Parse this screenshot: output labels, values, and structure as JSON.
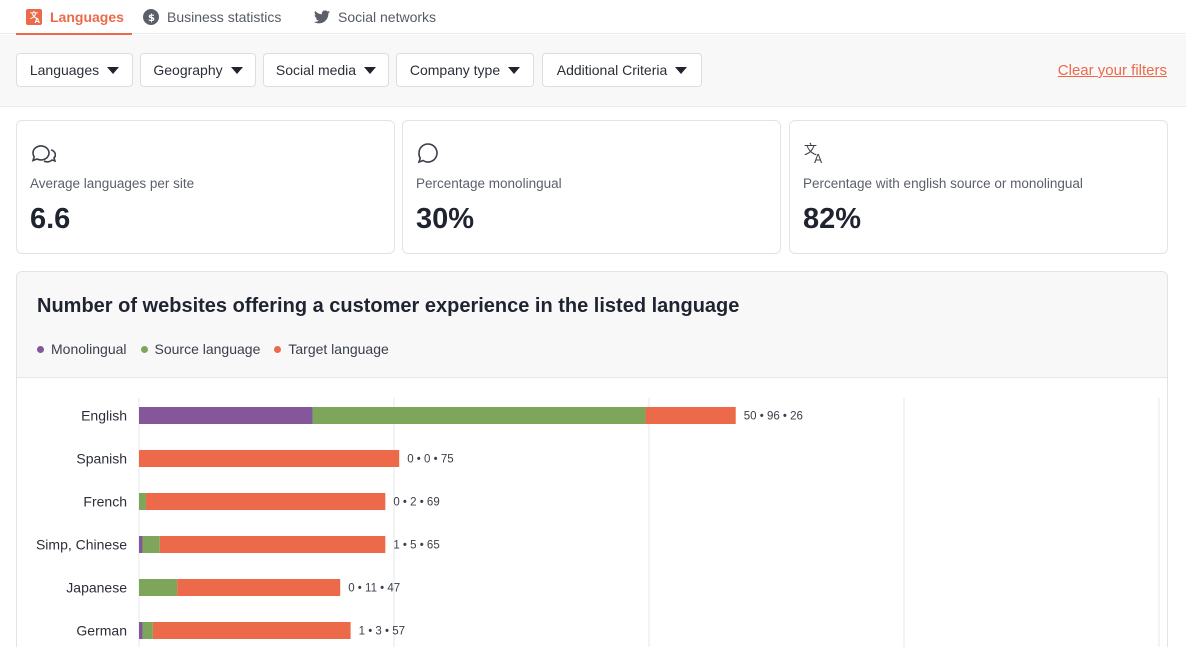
{
  "tabs": [
    {
      "label": "Languages",
      "icon": "translate-icon",
      "active": true
    },
    {
      "label": "Business statistics",
      "icon": "dollar-circle-icon",
      "active": false
    },
    {
      "label": "Social networks",
      "icon": "twitter-icon",
      "active": false
    }
  ],
  "filters": [
    {
      "label": "Languages"
    },
    {
      "label": "Geography"
    },
    {
      "label": "Social media"
    },
    {
      "label": "Company type"
    },
    {
      "label": "Additional Criteria"
    }
  ],
  "clear_filters_label": "Clear your filters",
  "stats": [
    {
      "label": "Average languages per site",
      "value": "6.6",
      "icon": "chat-bubbles-icon"
    },
    {
      "label": "Percentage monolingual",
      "value": "30%",
      "icon": "chat-bubble-icon"
    },
    {
      "label": "Percentage with english source or monolingual",
      "value": "82%",
      "icon": "translate-icon"
    }
  ],
  "colors": {
    "accent": "#ec6a49",
    "monolingual": "#84569a",
    "source": "#7ea65a",
    "target": "#ec6a49"
  },
  "chart_data": {
    "type": "bar",
    "orientation": "horizontal",
    "stacked": true,
    "title": "Number of websites offering a customer experience in the listed language",
    "categories": [
      "English",
      "Spanish",
      "French",
      "Simp, Chinese",
      "Japanese",
      "German"
    ],
    "series": [
      {
        "name": "Monolingual",
        "values": [
          50,
          0,
          0,
          1,
          0,
          1
        ]
      },
      {
        "name": "Source language",
        "values": [
          96,
          0,
          2,
          5,
          11,
          3
        ]
      },
      {
        "name": "Target language",
        "values": [
          26,
          75,
          69,
          65,
          47,
          57
        ]
      }
    ],
    "xlim": [
      0,
      294
    ],
    "gridlines": [
      0,
      73.5,
      147,
      220.5,
      294
    ],
    "legend": "top-left",
    "data_label_separator": " • "
  }
}
